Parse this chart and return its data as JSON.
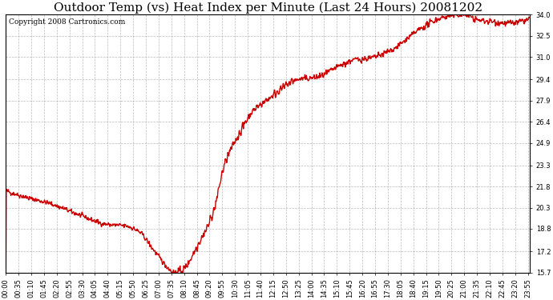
{
  "title": "Outdoor Temp (vs) Heat Index per Minute (Last 24 Hours) 20081202",
  "copyright_text": "Copyright 2008 Cartronics.com",
  "line_color": "#cc0000",
  "background_color": "#ffffff",
  "grid_color": "#aaaaaa",
  "ylim": [
    15.7,
    34.0
  ],
  "yticks": [
    15.7,
    17.2,
    18.8,
    20.3,
    21.8,
    23.3,
    24.9,
    26.4,
    27.9,
    29.4,
    31.0,
    32.5,
    34.0
  ],
  "xtick_labels": [
    "00:00",
    "00:35",
    "01:10",
    "01:45",
    "02:20",
    "02:55",
    "03:30",
    "04:05",
    "04:40",
    "05:15",
    "05:50",
    "06:25",
    "07:00",
    "07:35",
    "08:10",
    "08:45",
    "09:20",
    "09:55",
    "10:30",
    "11:05",
    "11:40",
    "12:15",
    "12:50",
    "13:25",
    "14:00",
    "14:35",
    "15:10",
    "15:45",
    "16:20",
    "16:55",
    "17:30",
    "18:05",
    "18:40",
    "19:15",
    "19:50",
    "20:25",
    "21:00",
    "21:35",
    "22:10",
    "22:45",
    "23:20",
    "23:55"
  ],
  "title_fontsize": 11,
  "copyright_fontsize": 6.5,
  "tick_fontsize": 6,
  "line_width": 1.0,
  "figwidth": 6.9,
  "figheight": 3.75,
  "dpi": 100,
  "keypoints_t": [
    0,
    60,
    120,
    200,
    280,
    330,
    370,
    400,
    450,
    460,
    480,
    530,
    570,
    600,
    640,
    680,
    720,
    760,
    800,
    840,
    860,
    920,
    960,
    1000,
    1060,
    1140,
    1200,
    1260,
    1300,
    1340,
    1380,
    1440
  ],
  "keypoints_y": [
    21.5,
    21.0,
    20.6,
    19.8,
    19.1,
    19.0,
    18.5,
    17.5,
    15.9,
    15.7,
    15.8,
    17.8,
    20.0,
    23.3,
    25.5,
    27.2,
    28.0,
    28.8,
    29.4,
    29.5,
    29.6,
    30.4,
    30.8,
    30.9,
    31.5,
    33.0,
    33.8,
    34.0,
    33.6,
    33.5,
    33.4,
    33.7
  ]
}
